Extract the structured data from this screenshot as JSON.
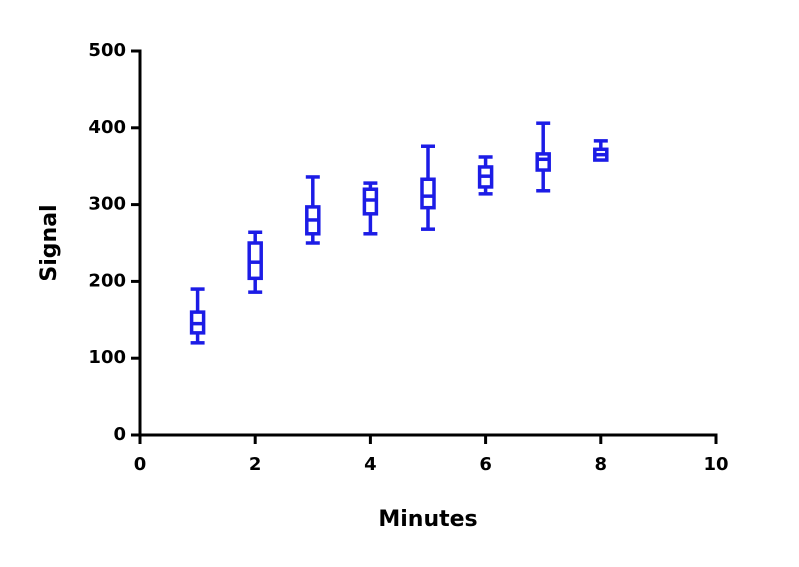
{
  "chart_data": {
    "type": "box",
    "x_label": "Minutes",
    "y_label": "Signal",
    "x": [
      1,
      2,
      3,
      4,
      5,
      6,
      7,
      8
    ],
    "min": [
      120,
      186,
      250,
      262,
      268,
      314,
      318,
      359
    ],
    "q1": [
      133,
      204,
      262,
      288,
      296,
      323,
      345,
      358
    ],
    "median": [
      145,
      225,
      280,
      306,
      311,
      337,
      359,
      365
    ],
    "q3": [
      160,
      250,
      297,
      320,
      333,
      349,
      366,
      372
    ],
    "max": [
      190,
      264,
      336,
      328,
      376,
      362,
      406,
      383
    ],
    "color": "#1c1ce6",
    "xlim": [
      0,
      10
    ],
    "xticks": [
      0,
      2,
      4,
      6,
      8,
      10
    ],
    "ylim": [
      0,
      500
    ],
    "yticks": [
      0,
      100,
      200,
      300,
      400,
      500
    ]
  }
}
